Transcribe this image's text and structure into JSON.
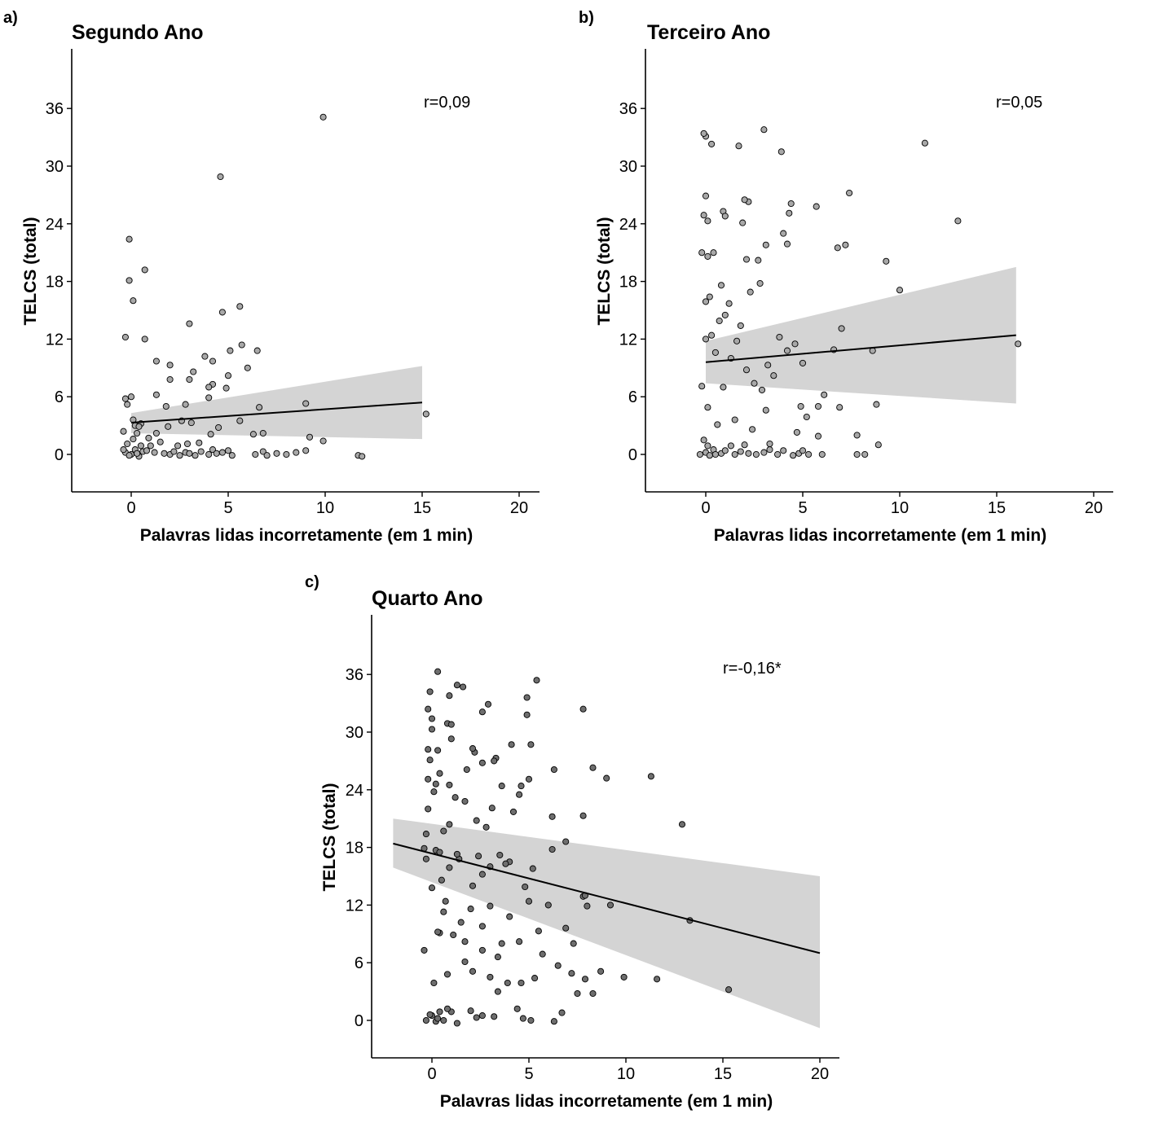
{
  "chart_data": [
    {
      "type": "scatter",
      "panel": "a)",
      "title": "Segundo Ano",
      "xlabel": "Palavras lidas incorretamente (em 1 min)",
      "ylabel": "TELCS (total)",
      "xticks": [
        0,
        5,
        10,
        15,
        20
      ],
      "yticks": [
        0,
        6,
        12,
        18,
        24,
        30,
        36
      ],
      "xlim": [
        -3,
        21
      ],
      "ylim": [
        -4,
        42
      ],
      "annotation": "r=0,09",
      "colors": {
        "point_fill": "#a8a8a8",
        "band": "#d4d4d4",
        "line": "#000000"
      },
      "regression": {
        "x0": 0,
        "y0": 3.3,
        "x1": 15,
        "y1": 5.4,
        "lo0": 2.2,
        "hi0": 4.3,
        "lo1": 1.6,
        "hi1": 9.2
      },
      "points": [
        [
          0,
          0
        ],
        [
          -0.3,
          0.2
        ],
        [
          0.2,
          0.5
        ],
        [
          0.4,
          -0.2
        ],
        [
          0.6,
          0.3
        ],
        [
          -0.2,
          1.1
        ],
        [
          0.1,
          1.6
        ],
        [
          0.3,
          2.2
        ],
        [
          -0.4,
          2.4
        ],
        [
          0.2,
          3
        ],
        [
          0.5,
          3.2
        ],
        [
          -0.3,
          5.8
        ],
        [
          0,
          6
        ],
        [
          -0.2,
          5.2
        ],
        [
          0.8,
          0.4
        ],
        [
          1,
          0.9
        ],
        [
          1.2,
          0.2
        ],
        [
          1.5,
          1.3
        ],
        [
          0.9,
          1.7
        ],
        [
          1.3,
          2.2
        ],
        [
          1.7,
          0.1
        ],
        [
          2,
          0
        ],
        [
          2.2,
          0.3
        ],
        [
          2.5,
          -0.1
        ],
        [
          2.8,
          0.2
        ],
        [
          3,
          0.1
        ],
        [
          3.3,
          -0.1
        ],
        [
          3.6,
          0.3
        ],
        [
          4,
          0
        ],
        [
          4.2,
          0.5
        ],
        [
          4.4,
          0.1
        ],
        [
          4.7,
          0.2
        ],
        [
          5,
          0.4
        ],
        [
          5.2,
          -0.1
        ],
        [
          6.4,
          0
        ],
        [
          6.8,
          0.3
        ],
        [
          7,
          -0.1
        ],
        [
          7.5,
          0.1
        ],
        [
          8,
          0
        ],
        [
          8.5,
          0.2
        ],
        [
          9,
          0.4
        ],
        [
          11.7,
          -0.1
        ],
        [
          11.9,
          -0.2
        ],
        [
          2.4,
          0.9
        ],
        [
          2.9,
          1.1
        ],
        [
          3.5,
          1.2
        ],
        [
          4.1,
          2.1
        ],
        [
          1.9,
          2.9
        ],
        [
          2.6,
          3.5
        ],
        [
          3.1,
          3.3
        ],
        [
          4.5,
          2.8
        ],
        [
          5.6,
          3.5
        ],
        [
          6.3,
          2.1
        ],
        [
          6.8,
          2.2
        ],
        [
          9.2,
          1.8
        ],
        [
          9.9,
          1.4
        ],
        [
          1.8,
          5
        ],
        [
          2.8,
          5.2
        ],
        [
          4,
          5.9
        ],
        [
          4.9,
          6.9
        ],
        [
          6.6,
          4.9
        ],
        [
          9,
          5.3
        ],
        [
          1.3,
          6.2
        ],
        [
          2,
          7.8
        ],
        [
          3,
          7.8
        ],
        [
          3.2,
          8.6
        ],
        [
          4.2,
          7.3
        ],
        [
          4,
          7
        ],
        [
          5,
          8.2
        ],
        [
          6,
          9
        ],
        [
          2,
          9.3
        ],
        [
          1.3,
          9.7
        ],
        [
          3.8,
          10.2
        ],
        [
          4.2,
          9.7
        ],
        [
          5.1,
          10.8
        ],
        [
          5.7,
          11.4
        ],
        [
          6.5,
          10.8
        ],
        [
          0.7,
          12
        ],
        [
          -0.3,
          12.2
        ],
        [
          3,
          13.6
        ],
        [
          4.7,
          14.8
        ],
        [
          5.6,
          15.4
        ],
        [
          0.1,
          16
        ],
        [
          -0.1,
          18.1
        ],
        [
          0.7,
          19.2
        ],
        [
          -0.1,
          22.4
        ],
        [
          4.6,
          28.9
        ],
        [
          9.9,
          35.1
        ],
        [
          15.2,
          4.2
        ],
        [
          0.3,
          0.1
        ],
        [
          -0.1,
          -0.1
        ],
        [
          0.5,
          0.9
        ],
        [
          -0.4,
          0.5
        ],
        [
          0.1,
          3.6
        ],
        [
          0.4,
          2.9
        ]
      ]
    },
    {
      "type": "scatter",
      "panel": "b)",
      "title": "Terceiro Ano",
      "xlabel": "Palavras lidas incorretamente (em 1 min)",
      "ylabel": "TELCS (total)",
      "xticks": [
        0,
        5,
        10,
        15,
        20
      ],
      "yticks": [
        0,
        6,
        12,
        18,
        24,
        30,
        36
      ],
      "xlim": [
        -3,
        21
      ],
      "ylim": [
        -4,
        42
      ],
      "annotation": "r=0,05",
      "colors": {
        "point_fill": "#a8a8a8",
        "band": "#d4d4d4",
        "line": "#000000"
      },
      "regression": {
        "x0": 0,
        "y0": 9.6,
        "x1": 16,
        "y1": 12.4,
        "lo0": 7.4,
        "hi0": 11.8,
        "lo1": 5.3,
        "hi1": 19.5
      },
      "points": [
        [
          -0.3,
          0
        ],
        [
          0,
          0.2
        ],
        [
          0.2,
          -0.1
        ],
        [
          0.4,
          0.5
        ],
        [
          -0.1,
          1.5
        ],
        [
          0.1,
          0.9
        ],
        [
          0.5,
          0
        ],
        [
          0.8,
          0.1
        ],
        [
          1,
          0.4
        ],
        [
          1.3,
          0.9
        ],
        [
          1.5,
          0
        ],
        [
          1.8,
          0.3
        ],
        [
          2,
          1
        ],
        [
          2.2,
          0.1
        ],
        [
          2.6,
          0
        ],
        [
          3,
          0.2
        ],
        [
          3.3,
          0.5
        ],
        [
          3.7,
          0
        ],
        [
          4,
          0.4
        ],
        [
          4.5,
          -0.1
        ],
        [
          4.8,
          0.1
        ],
        [
          5,
          0.4
        ],
        [
          5.3,
          0
        ],
        [
          6,
          0
        ],
        [
          7.8,
          0
        ],
        [
          8.2,
          0
        ],
        [
          8.9,
          1
        ],
        [
          -0.2,
          7.1
        ],
        [
          0.1,
          4.9
        ],
        [
          0.5,
          10.6
        ],
        [
          0.9,
          7
        ],
        [
          1.3,
          10
        ],
        [
          1.6,
          11.8
        ],
        [
          2.1,
          8.8
        ],
        [
          2.5,
          7.4
        ],
        [
          2.9,
          6.7
        ],
        [
          3.2,
          9.3
        ],
        [
          3.5,
          8.2
        ],
        [
          3.8,
          12.2
        ],
        [
          4.2,
          10.8
        ],
        [
          4.6,
          11.5
        ],
        [
          5,
          9.5
        ],
        [
          5.2,
          3.9
        ],
        [
          5.8,
          5
        ],
        [
          6.1,
          6.2
        ],
        [
          6.6,
          10.9
        ],
        [
          7,
          13.1
        ],
        [
          7.8,
          2
        ],
        [
          8.6,
          10.8
        ],
        [
          8.8,
          5.2
        ],
        [
          0,
          12
        ],
        [
          0.3,
          12.4
        ],
        [
          0.7,
          13.9
        ],
        [
          1,
          14.5
        ],
        [
          1.2,
          15.7
        ],
        [
          1.8,
          13.4
        ],
        [
          2.3,
          16.9
        ],
        [
          2.8,
          17.8
        ],
        [
          3.1,
          21.8
        ],
        [
          4,
          23
        ],
        [
          4.2,
          21.9
        ],
        [
          0,
          15.9
        ],
        [
          0.2,
          16.4
        ],
        [
          -0.2,
          21
        ],
        [
          0.1,
          20.6
        ],
        [
          0.4,
          21
        ],
        [
          0.8,
          17.6
        ],
        [
          1.9,
          24.1
        ],
        [
          2.1,
          20.3
        ],
        [
          2.2,
          26.3
        ],
        [
          2.7,
          20.2
        ],
        [
          4.3,
          25.1
        ],
        [
          4.4,
          26.1
        ],
        [
          5.7,
          25.8
        ],
        [
          6.8,
          21.5
        ],
        [
          7.2,
          21.8
        ],
        [
          7.4,
          27.2
        ],
        [
          9.3,
          20.1
        ],
        [
          10,
          17.1
        ],
        [
          0.1,
          24.3
        ],
        [
          -0.1,
          24.9
        ],
        [
          0,
          26.9
        ],
        [
          0.9,
          25.3
        ],
        [
          1,
          24.8
        ],
        [
          2,
          26.5
        ],
        [
          3,
          33.8
        ],
        [
          3.9,
          31.5
        ],
        [
          0,
          33.1
        ],
        [
          0.3,
          32.3
        ],
        [
          1.7,
          32.1
        ],
        [
          11.3,
          32.4
        ],
        [
          13,
          24.3
        ],
        [
          16.1,
          11.5
        ],
        [
          -0.1,
          33.4
        ],
        [
          1.5,
          3.6
        ],
        [
          2.4,
          2.6
        ],
        [
          3.1,
          4.6
        ],
        [
          4.7,
          2.3
        ],
        [
          4.9,
          5
        ],
        [
          6.9,
          4.9
        ],
        [
          5.8,
          1.9
        ],
        [
          3.3,
          1.1
        ],
        [
          0.6,
          3.1
        ]
      ]
    },
    {
      "type": "scatter",
      "panel": "c)",
      "title": "Quarto Ano",
      "xlabel": "Palavras lidas incorretamente (em 1 min)",
      "ylabel": "TELCS (total)",
      "xticks": [
        0,
        5,
        10,
        15,
        20
      ],
      "yticks": [
        0,
        6,
        12,
        18,
        24,
        30,
        36
      ],
      "xlim": [
        -3,
        21
      ],
      "ylim": [
        -4,
        42
      ],
      "annotation": "r=-0,16*",
      "colors": {
        "point_fill": "#6e6e6e",
        "band": "#d4d4d4",
        "line": "#000000"
      },
      "regression": {
        "x0": -2,
        "y0": 18.4,
        "x1": 20,
        "y1": 7,
        "lo0": 15.9,
        "hi0": 21,
        "lo1": -0.8,
        "hi1": 15
      },
      "points": [
        [
          -0.3,
          0
        ],
        [
          0,
          0.5
        ],
        [
          0.2,
          -0.1
        ],
        [
          0.4,
          0.9
        ],
        [
          -0.1,
          0.6
        ],
        [
          0.3,
          0.2
        ],
        [
          0.6,
          0
        ],
        [
          1,
          0.9
        ],
        [
          1.3,
          -0.3
        ],
        [
          2,
          1
        ],
        [
          2.3,
          0.3
        ],
        [
          3.2,
          0.4
        ],
        [
          4.4,
          1.2
        ],
        [
          4.7,
          0.2
        ],
        [
          5.1,
          0
        ],
        [
          6.3,
          -0.1
        ],
        [
          6.7,
          0.8
        ],
        [
          0.1,
          3.9
        ],
        [
          0.8,
          4.8
        ],
        [
          1.7,
          6.1
        ],
        [
          2.1,
          5.1
        ],
        [
          3,
          4.5
        ],
        [
          3.4,
          3
        ],
        [
          3.9,
          3.9
        ],
        [
          4.6,
          3.9
        ],
        [
          5.3,
          4.4
        ],
        [
          5.7,
          6.9
        ],
        [
          6.5,
          5.7
        ],
        [
          7.2,
          4.9
        ],
        [
          7.5,
          2.8
        ],
        [
          7.9,
          4.3
        ],
        [
          8.3,
          2.8
        ],
        [
          8.7,
          5.1
        ],
        [
          9.9,
          4.5
        ],
        [
          11.6,
          4.3
        ],
        [
          15.3,
          3.2
        ],
        [
          -0.4,
          7.3
        ],
        [
          0.4,
          9.1
        ],
        [
          0.7,
          12.4
        ],
        [
          1.1,
          8.9
        ],
        [
          1.5,
          10.2
        ],
        [
          2,
          11.6
        ],
        [
          2.6,
          9.8
        ],
        [
          3,
          11.9
        ],
        [
          3.6,
          8
        ],
        [
          4,
          10.8
        ],
        [
          4.5,
          8.2
        ],
        [
          5,
          12.4
        ],
        [
          5.5,
          9.3
        ],
        [
          6,
          12
        ],
        [
          6.9,
          9.6
        ],
        [
          7.3,
          8
        ],
        [
          7.8,
          12.9
        ],
        [
          8,
          11.9
        ],
        [
          9.2,
          12
        ],
        [
          13.3,
          10.4
        ],
        [
          0,
          13.8
        ],
        [
          0.5,
          14.6
        ],
        [
          0.9,
          15.9
        ],
        [
          1.4,
          16.8
        ],
        [
          2.1,
          14
        ],
        [
          2.6,
          15.2
        ],
        [
          3,
          16
        ],
        [
          3.5,
          17.2
        ],
        [
          4,
          16.5
        ],
        [
          4.8,
          13.9
        ],
        [
          5.2,
          15.8
        ],
        [
          6.2,
          17.8
        ],
        [
          6.9,
          18.6
        ],
        [
          7.9,
          13
        ],
        [
          -0.3,
          19.4
        ],
        [
          0.2,
          17.7
        ],
        [
          0.6,
          19.7
        ],
        [
          0.9,
          20.4
        ],
        [
          1.7,
          22.8
        ],
        [
          2.3,
          20.8
        ],
        [
          2.8,
          20.1
        ],
        [
          3.1,
          22.1
        ],
        [
          3.6,
          24.4
        ],
        [
          4.2,
          21.7
        ],
        [
          4.6,
          24.4
        ],
        [
          5,
          25.1
        ],
        [
          6.2,
          21.2
        ],
        [
          7.8,
          21.3
        ],
        [
          -0.2,
          22
        ],
        [
          0.1,
          23.8
        ],
        [
          0.4,
          25.7
        ],
        [
          0.9,
          24.5
        ],
        [
          1.2,
          23.2
        ],
        [
          2.2,
          27.9
        ],
        [
          2.6,
          26.8
        ],
        [
          3.3,
          27.3
        ],
        [
          4.5,
          23.5
        ],
        [
          5.1,
          28.7
        ],
        [
          6.3,
          26.1
        ],
        [
          8.3,
          26.3
        ],
        [
          9,
          25.2
        ],
        [
          11.3,
          25.4
        ],
        [
          12.9,
          20.4
        ],
        [
          -0.1,
          27.1
        ],
        [
          0.3,
          28.1
        ],
        [
          0.8,
          30.9
        ],
        [
          1,
          29.3
        ],
        [
          1.8,
          26.1
        ],
        [
          2.1,
          28.3
        ],
        [
          2.6,
          32.1
        ],
        [
          3.2,
          27
        ],
        [
          4.1,
          28.7
        ],
        [
          4.9,
          31.8
        ],
        [
          0,
          30.3
        ],
        [
          -0.2,
          28.2
        ],
        [
          0,
          31.4
        ],
        [
          0.3,
          36.3
        ],
        [
          0.9,
          33.8
        ],
        [
          1.3,
          34.9
        ],
        [
          1.6,
          34.7
        ],
        [
          2.9,
          32.9
        ],
        [
          4.9,
          33.6
        ],
        [
          5.4,
          35.4
        ],
        [
          7.8,
          32.4
        ],
        [
          -0.1,
          34.2
        ],
        [
          -0.2,
          32.4
        ],
        [
          1,
          30.8
        ],
        [
          -0.2,
          25.1
        ],
        [
          0.2,
          24.6
        ],
        [
          -0.4,
          17.9
        ],
        [
          -0.3,
          16.8
        ],
        [
          0.4,
          17.5
        ],
        [
          1.3,
          17.3
        ],
        [
          2.4,
          17.1
        ],
        [
          3.8,
          16.3
        ],
        [
          0.3,
          9.2
        ],
        [
          0.6,
          11.3
        ],
        [
          1.7,
          8.2
        ],
        [
          2.6,
          7.3
        ],
        [
          3.4,
          6.6
        ],
        [
          0.8,
          1.2
        ],
        [
          2.6,
          0.5
        ]
      ]
    }
  ]
}
